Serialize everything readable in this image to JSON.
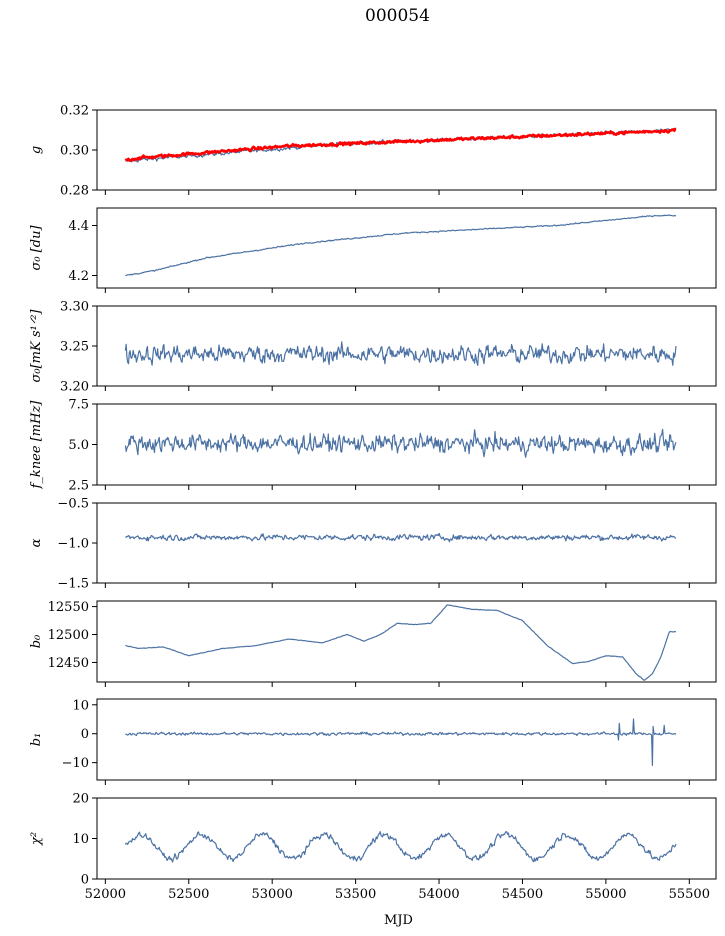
{
  "title": "000054",
  "colors": {
    "series": "#4c72a4",
    "fit": "#ff0000",
    "axis": "#000000"
  },
  "chart_data": [
    {
      "type": "line",
      "ylabel": "g",
      "ylim": [
        0.28,
        0.32
      ],
      "yticks": [
        0.28,
        0.3,
        0.32
      ],
      "ytick_labels": [
        "0.28",
        "0.30",
        "0.32"
      ],
      "series": [
        {
          "x": [
            52120,
            52200,
            52500,
            52800,
            53100,
            53400,
            53700,
            54000,
            54300,
            54600,
            54900,
            55200,
            55420
          ],
          "values": [
            0.294,
            0.295,
            0.297,
            0.299,
            0.301,
            0.303,
            0.304,
            0.305,
            0.306,
            0.307,
            0.308,
            0.309,
            0.31
          ],
          "noise": 0.0015
        },
        {
          "x": [
            52120,
            52200,
            52500,
            52800,
            53100,
            53400,
            53700,
            54000,
            54300,
            54600,
            54900,
            55200,
            55420
          ],
          "values": [
            0.295,
            0.296,
            0.298,
            0.3,
            0.302,
            0.303,
            0.304,
            0.305,
            0.306,
            0.307,
            0.308,
            0.309,
            0.31
          ],
          "noise": 0.0012,
          "role": "fit"
        }
      ]
    },
    {
      "type": "line",
      "ylabel": "σ₀ [du]",
      "ylim": [
        4.15,
        4.47
      ],
      "yticks": [
        4.2,
        4.4
      ],
      "ytick_labels": [
        "4.2",
        "4.4"
      ],
      "series": [
        {
          "x": [
            52120,
            52300,
            52600,
            52900,
            53200,
            53500,
            53800,
            54100,
            54400,
            54700,
            55000,
            55300,
            55420
          ],
          "values": [
            4.2,
            4.22,
            4.27,
            4.3,
            4.33,
            4.35,
            4.37,
            4.38,
            4.39,
            4.4,
            4.42,
            4.44,
            4.44
          ],
          "noise": 0.004
        }
      ]
    },
    {
      "type": "line",
      "ylabel": "σ₀[mK s¹ᐟ²]",
      "ylim": [
        3.2,
        3.3
      ],
      "yticks": [
        3.2,
        3.25,
        3.3
      ],
      "ytick_labels": [
        "3.20",
        "3.25",
        "3.30"
      ],
      "series": [
        {
          "x": [
            52120,
            55420
          ],
          "values": [
            3.24,
            3.24
          ],
          "noise": 0.018
        }
      ]
    },
    {
      "type": "line",
      "ylabel": "f_knee [mHz]",
      "ylim": [
        2.5,
        7.5
      ],
      "yticks": [
        2.5,
        5.0,
        7.5
      ],
      "ytick_labels": [
        "2.5",
        "5.0",
        "7.5"
      ],
      "series": [
        {
          "x": [
            52120,
            55420
          ],
          "values": [
            5.1,
            5.0
          ],
          "noise": 0.9
        }
      ]
    },
    {
      "type": "line",
      "ylabel": "α",
      "ylim": [
        -1.5,
        -0.5
      ],
      "yticks": [
        -1.5,
        -1.0,
        -0.5
      ],
      "ytick_labels": [
        "−1.5",
        "−1.0",
        "−0.5"
      ],
      "series": [
        {
          "x": [
            52120,
            55420
          ],
          "values": [
            -0.93,
            -0.93
          ],
          "noise": 0.06
        }
      ]
    },
    {
      "type": "line",
      "ylabel": "b₀",
      "ylim": [
        12415,
        12560
      ],
      "yticks": [
        12450,
        12500,
        12550
      ],
      "ytick_labels": [
        "12450",
        "12500",
        "12550"
      ],
      "series": [
        {
          "x": [
            52120,
            52200,
            52350,
            52500,
            52700,
            52900,
            53100,
            53300,
            53450,
            53550,
            53650,
            53750,
            53850,
            53950,
            54050,
            54200,
            54350,
            54500,
            54650,
            54800,
            54900,
            55000,
            55100,
            55180,
            55230,
            55280,
            55330,
            55380,
            55420
          ],
          "values": [
            12480,
            12475,
            12478,
            12462,
            12475,
            12480,
            12492,
            12485,
            12500,
            12488,
            12500,
            12520,
            12518,
            12520,
            12553,
            12545,
            12543,
            12525,
            12480,
            12448,
            12452,
            12462,
            12460,
            12430,
            12418,
            12430,
            12460,
            12505,
            12505
          ],
          "noise": 0.8
        }
      ]
    },
    {
      "type": "line",
      "ylabel": "b₁",
      "ylim": [
        -16,
        12
      ],
      "yticks": [
        -10,
        0,
        10
      ],
      "ytick_labels": [
        "−10",
        "0",
        "10"
      ],
      "series": [
        {
          "x": [
            52120,
            55420
          ],
          "values": [
            0,
            0
          ],
          "noise": 0.8
        }
      ]
    },
    {
      "type": "line",
      "ylabel": "χ²",
      "ylim": [
        0,
        20
      ],
      "yticks": [
        0,
        10,
        20
      ],
      "ytick_labels": [
        "0",
        "10",
        "20"
      ],
      "xlabel": "MJD",
      "xticks": [
        52000,
        52500,
        53000,
        53500,
        54000,
        54500,
        55000,
        55500
      ],
      "xtick_labels": [
        "52000",
        "52500",
        "53000",
        "53500",
        "54000",
        "54500",
        "55000",
        "55500"
      ],
      "series": [
        {
          "x": [
            52120,
            55420
          ],
          "values": [
            8,
            8
          ],
          "noise": 1.2,
          "period": 365
        }
      ]
    }
  ],
  "x_axis": {
    "xlim": [
      51950,
      55660
    ]
  }
}
